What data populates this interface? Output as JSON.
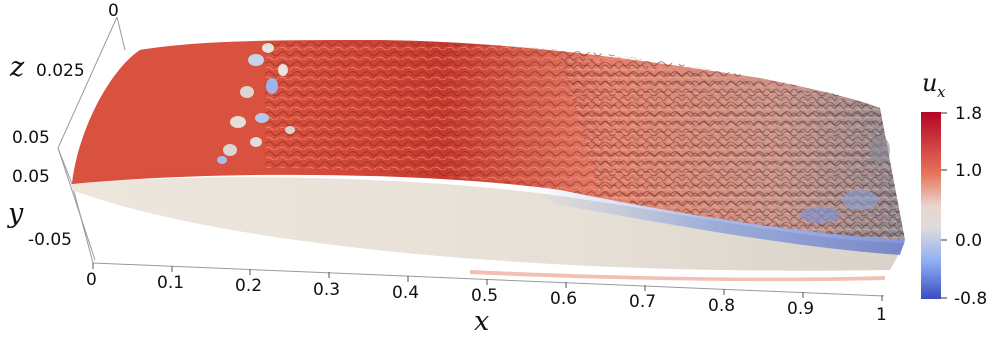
{
  "axes": {
    "x": {
      "letter": "x",
      "ticks": [
        "0",
        "0.1",
        "0.2",
        "0.3",
        "0.4",
        "0.5",
        "0.6",
        "0.7",
        "0.8",
        "0.9",
        "1"
      ]
    },
    "y": {
      "letter": "y",
      "ticks": [
        "0.05",
        "0.05",
        "-0.05"
      ]
    },
    "z": {
      "letter": "z",
      "ticks": [
        "0",
        "0.025"
      ]
    }
  },
  "colorbar": {
    "symbol": "u",
    "subscript": "x",
    "ticks": [
      "1.8",
      "1.0",
      "0.0",
      "-0.8"
    ],
    "colors": [
      "#b40426",
      "#e7745b",
      "#dddcdb",
      "#6f92f3",
      "#3b4cc0"
    ]
  }
}
